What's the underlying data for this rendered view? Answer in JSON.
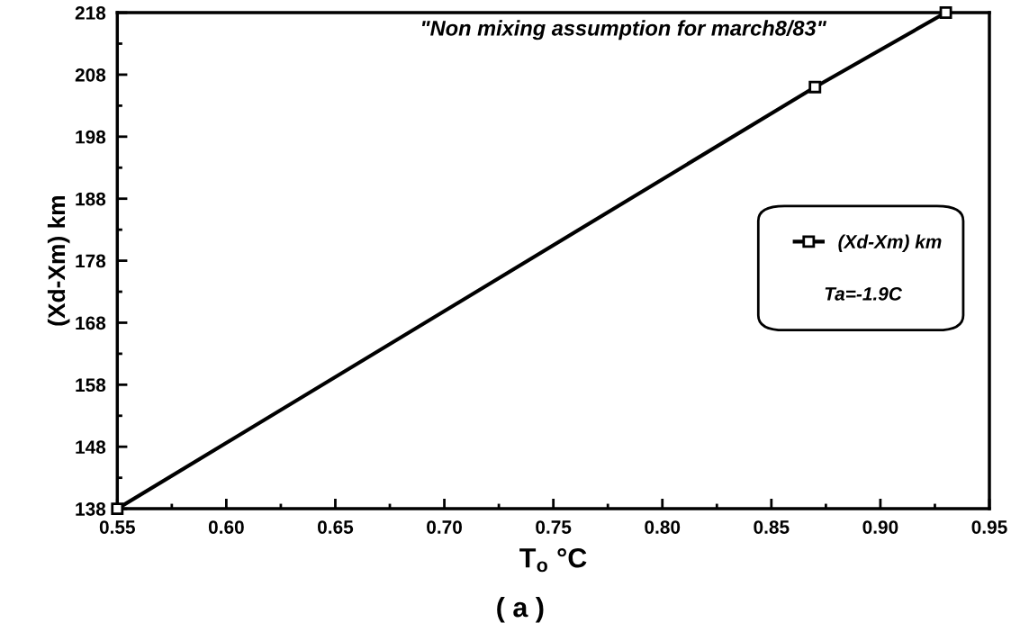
{
  "chart_data": {
    "type": "line",
    "xlabel": "T$_{o}$ °C",
    "ylabel": "(Xd-Xm) km",
    "x": [
      0.55,
      0.87,
      0.93
    ],
    "series": [
      {
        "name": "(Xd-Xm) km",
        "color": "#000000",
        "values": [
          138,
          206,
          218
        ]
      }
    ],
    "marker": "square",
    "line_style": "solid",
    "legend": "right",
    "grid": false,
    "xlim": [
      0.55,
      0.95
    ],
    "xticks": [
      {
        "value": 0.55,
        "label": "0.55"
      },
      {
        "value": 0.6,
        "label": "0.60"
      },
      {
        "value": 0.65,
        "label": "0.65"
      },
      {
        "value": 0.7,
        "label": "0.70"
      },
      {
        "value": 0.75,
        "label": "0.75"
      },
      {
        "value": 0.8,
        "label": "0.80"
      },
      {
        "value": 0.85,
        "label": "0.85"
      },
      {
        "value": 0.9,
        "label": "0.90"
      },
      {
        "value": 0.95,
        "label": "0.95"
      }
    ],
    "ylim": [
      138,
      218
    ],
    "yticks": [
      138,
      148,
      158,
      168,
      178,
      188,
      198,
      208,
      218
    ],
    "annotations": [
      "\"Non mixing assumption for march8/83\"",
      "Ta=-1.9C",
      "( a )"
    ]
  }
}
